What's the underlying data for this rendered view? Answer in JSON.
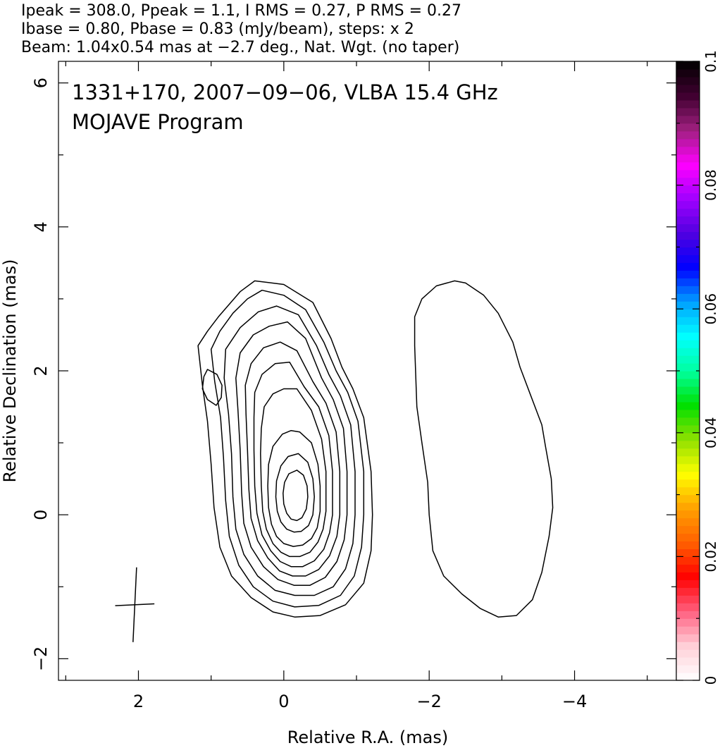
{
  "header": {
    "line1": "Ipeak = 308.0, Ppeak = 1.1, I RMS = 0.27, P RMS = 0.27",
    "line2": "Ibase = 0.80, Pbase = 0.83 (mJy/beam), steps: x 2",
    "line3": "Beam: 1.04x0.54 mas at −2.7 deg., Nat. Wgt. (no taper)"
  },
  "chart_data": {
    "type": "contour",
    "title": "1331+170, 2007−09−06, VLBA 15.4 GHz",
    "subtitle": "MOJAVE Program",
    "xlabel": "Relative R.A. (mas)",
    "ylabel": "Relative Declination (mas)",
    "xlim": [
      3.1,
      -5.4
    ],
    "ylim": [
      -2.3,
      6.3
    ],
    "x_reversed": true,
    "x_ticks": [
      2,
      0,
      -2,
      -4
    ],
    "x_tick_labels": [
      "2",
      "0",
      "−2",
      "−4"
    ],
    "x_minor_ticks": [
      3,
      1,
      -1,
      -3,
      -5
    ],
    "y_ticks": [
      -2,
      0,
      2,
      4,
      6
    ],
    "y_tick_labels": [
      "−2",
      "0",
      "2",
      "4",
      "6"
    ],
    "y_minor_ticks": [
      -1,
      1,
      3,
      5
    ],
    "grid": false,
    "colorbar": {
      "min": 0,
      "max": 0.1,
      "ticks": [
        0,
        0.02,
        0.04,
        0.06,
        0.08,
        0.1
      ],
      "tick_labels": [
        "0",
        "0.02",
        "0.04",
        "0.06",
        "0.08",
        "0.1"
      ],
      "minor_ticks": [
        0.01,
        0.03,
        0.05,
        0.07,
        0.09
      ],
      "colors": [
        "#ffffff",
        "#ffd0d8",
        "#ff6080",
        "#ff0000",
        "#ff6000",
        "#ffa000",
        "#ffff00",
        "#90e000",
        "#00e000",
        "#00ffa0",
        "#00ffff",
        "#00a0ff",
        "#0000ff",
        "#5000e0",
        "#a000ff",
        "#ff00ff",
        "#a02080",
        "#400030",
        "#000000"
      ]
    },
    "beam": {
      "center": [
        2.05,
        -1.25
      ],
      "major": 1.04,
      "minor": 0.54,
      "pa": -2.7
    },
    "contours": [
      {
        "name": "c1",
        "points": [
          [
            0.6,
            3.1
          ],
          [
            0.4,
            3.25
          ],
          [
            0.0,
            3.2
          ],
          [
            -0.4,
            2.95
          ],
          [
            -0.65,
            2.45
          ],
          [
            -0.8,
            2.05
          ],
          [
            -0.95,
            1.75
          ],
          [
            -1.1,
            1.35
          ],
          [
            -1.2,
            0.6
          ],
          [
            -1.22,
            0
          ],
          [
            -1.2,
            -0.5
          ],
          [
            -1.1,
            -0.95
          ],
          [
            -0.85,
            -1.25
          ],
          [
            -0.5,
            -1.4
          ],
          [
            -0.15,
            -1.42
          ],
          [
            0.15,
            -1.35
          ],
          [
            0.45,
            -1.15
          ],
          [
            0.72,
            -0.85
          ],
          [
            0.88,
            -0.45
          ],
          [
            0.96,
            0.1
          ],
          [
            1.0,
            0.7
          ],
          [
            1.05,
            1.3
          ],
          [
            1.12,
            1.8
          ],
          [
            1.18,
            2.35
          ],
          [
            1.05,
            2.55
          ],
          [
            0.9,
            2.75
          ],
          [
            0.6,
            3.1
          ]
        ]
      },
      {
        "name": "c2",
        "points": [
          [
            0.5,
            3.0
          ],
          [
            0.3,
            3.12
          ],
          [
            0.0,
            3.05
          ],
          [
            -0.3,
            2.85
          ],
          [
            -0.55,
            2.4
          ],
          [
            -0.72,
            2.0
          ],
          [
            -0.88,
            1.7
          ],
          [
            -1.02,
            1.3
          ],
          [
            -1.1,
            0.6
          ],
          [
            -1.1,
            0
          ],
          [
            -1.07,
            -0.45
          ],
          [
            -0.97,
            -0.85
          ],
          [
            -0.78,
            -1.12
          ],
          [
            -0.48,
            -1.26
          ],
          [
            -0.15,
            -1.28
          ],
          [
            0.15,
            -1.2
          ],
          [
            0.42,
            -1.0
          ],
          [
            0.62,
            -0.7
          ],
          [
            0.75,
            -0.3
          ],
          [
            0.8,
            0.2
          ],
          [
            0.83,
            0.8
          ],
          [
            0.87,
            1.35
          ],
          [
            0.95,
            1.85
          ],
          [
            1.0,
            2.3
          ],
          [
            0.88,
            2.55
          ],
          [
            0.7,
            2.8
          ],
          [
            0.5,
            3.0
          ]
        ]
      },
      {
        "name": "c3",
        "points": [
          [
            0.35,
            2.82
          ],
          [
            0.1,
            2.9
          ],
          [
            -0.2,
            2.78
          ],
          [
            -0.45,
            2.35
          ],
          [
            -0.62,
            1.95
          ],
          [
            -0.78,
            1.65
          ],
          [
            -0.92,
            1.25
          ],
          [
            -0.98,
            0.6
          ],
          [
            -0.98,
            0
          ],
          [
            -0.95,
            -0.4
          ],
          [
            -0.85,
            -0.75
          ],
          [
            -0.68,
            -1.0
          ],
          [
            -0.42,
            -1.12
          ],
          [
            -0.15,
            -1.12
          ],
          [
            0.12,
            -1.05
          ],
          [
            0.36,
            -0.85
          ],
          [
            0.55,
            -0.55
          ],
          [
            0.66,
            -0.2
          ],
          [
            0.7,
            0.25
          ],
          [
            0.72,
            0.85
          ],
          [
            0.76,
            1.4
          ],
          [
            0.82,
            1.9
          ],
          [
            0.8,
            2.3
          ],
          [
            0.6,
            2.6
          ],
          [
            0.35,
            2.82
          ]
        ]
      },
      {
        "name": "c4",
        "points": [
          [
            0.2,
            2.62
          ],
          [
            -0.05,
            2.68
          ],
          [
            -0.3,
            2.45
          ],
          [
            -0.52,
            1.9
          ],
          [
            -0.68,
            1.6
          ],
          [
            -0.82,
            1.2
          ],
          [
            -0.87,
            0.6
          ],
          [
            -0.87,
            0
          ],
          [
            -0.83,
            -0.35
          ],
          [
            -0.73,
            -0.65
          ],
          [
            -0.57,
            -0.87
          ],
          [
            -0.36,
            -0.98
          ],
          [
            -0.14,
            -0.98
          ],
          [
            0.08,
            -0.9
          ],
          [
            0.28,
            -0.72
          ],
          [
            0.45,
            -0.45
          ],
          [
            0.55,
            -0.12
          ],
          [
            0.58,
            0.3
          ],
          [
            0.6,
            0.9
          ],
          [
            0.63,
            1.45
          ],
          [
            0.66,
            1.9
          ],
          [
            0.6,
            2.25
          ],
          [
            0.42,
            2.5
          ],
          [
            0.2,
            2.62
          ]
        ]
      },
      {
        "name": "c5",
        "points": [
          [
            0.05,
            2.4
          ],
          [
            -0.18,
            2.28
          ],
          [
            -0.4,
            1.85
          ],
          [
            -0.58,
            1.55
          ],
          [
            -0.72,
            1.15
          ],
          [
            -0.77,
            0.6
          ],
          [
            -0.77,
            0
          ],
          [
            -0.73,
            -0.3
          ],
          [
            -0.63,
            -0.57
          ],
          [
            -0.48,
            -0.76
          ],
          [
            -0.3,
            -0.85
          ],
          [
            -0.12,
            -0.85
          ],
          [
            0.06,
            -0.78
          ],
          [
            0.22,
            -0.6
          ],
          [
            0.36,
            -0.36
          ],
          [
            0.45,
            -0.05
          ],
          [
            0.48,
            0.35
          ],
          [
            0.5,
            0.9
          ],
          [
            0.52,
            1.4
          ],
          [
            0.53,
            1.8
          ],
          [
            0.45,
            2.1
          ],
          [
            0.28,
            2.32
          ],
          [
            0.05,
            2.4
          ]
        ]
      },
      {
        "name": "c6",
        "points": [
          [
            -0.08,
            2.12
          ],
          [
            -0.28,
            1.78
          ],
          [
            -0.48,
            1.5
          ],
          [
            -0.62,
            1.1
          ],
          [
            -0.67,
            0.6
          ],
          [
            -0.67,
            0
          ],
          [
            -0.63,
            -0.25
          ],
          [
            -0.55,
            -0.48
          ],
          [
            -0.42,
            -0.64
          ],
          [
            -0.26,
            -0.72
          ],
          [
            -0.1,
            -0.72
          ],
          [
            0.05,
            -0.65
          ],
          [
            0.18,
            -0.5
          ],
          [
            0.3,
            -0.28
          ],
          [
            0.37,
            0.02
          ],
          [
            0.4,
            0.4
          ],
          [
            0.41,
            0.9
          ],
          [
            0.41,
            1.35
          ],
          [
            0.4,
            1.7
          ],
          [
            0.3,
            1.95
          ],
          [
            0.12,
            2.1
          ],
          [
            -0.08,
            2.12
          ]
        ]
      },
      {
        "name": "c7",
        "points": [
          [
            -0.18,
            1.75
          ],
          [
            -0.38,
            1.45
          ],
          [
            -0.52,
            1.05
          ],
          [
            -0.58,
            0.6
          ],
          [
            -0.58,
            0.05
          ],
          [
            -0.54,
            -0.2
          ],
          [
            -0.47,
            -0.38
          ],
          [
            -0.36,
            -0.52
          ],
          [
            -0.22,
            -0.58
          ],
          [
            -0.08,
            -0.58
          ],
          [
            0.04,
            -0.52
          ],
          [
            0.15,
            -0.4
          ],
          [
            0.24,
            -0.2
          ],
          [
            0.29,
            0.05
          ],
          [
            0.31,
            0.4
          ],
          [
            0.32,
            0.85
          ],
          [
            0.31,
            1.2
          ],
          [
            0.27,
            1.5
          ],
          [
            0.15,
            1.68
          ],
          [
            0.0,
            1.75
          ],
          [
            -0.18,
            1.75
          ]
        ]
      },
      {
        "name": "c8",
        "points": [
          [
            -0.22,
            1.15
          ],
          [
            -0.38,
            1.0
          ],
          [
            -0.47,
            0.7
          ],
          [
            -0.5,
            0.4
          ],
          [
            -0.5,
            0.05
          ],
          [
            -0.46,
            -0.18
          ],
          [
            -0.38,
            -0.33
          ],
          [
            -0.26,
            -0.42
          ],
          [
            -0.13,
            -0.44
          ],
          [
            0.0,
            -0.4
          ],
          [
            0.1,
            -0.3
          ],
          [
            0.17,
            -0.13
          ],
          [
            0.21,
            0.1
          ],
          [
            0.22,
            0.4
          ],
          [
            0.21,
            0.7
          ],
          [
            0.15,
            0.95
          ],
          [
            0.02,
            1.12
          ],
          [
            -0.1,
            1.17
          ],
          [
            -0.22,
            1.15
          ]
        ]
      },
      {
        "name": "c9",
        "points": [
          [
            -0.2,
            0.85
          ],
          [
            -0.33,
            0.73
          ],
          [
            -0.4,
            0.5
          ],
          [
            -0.42,
            0.25
          ],
          [
            -0.4,
            0.0
          ],
          [
            -0.34,
            -0.15
          ],
          [
            -0.24,
            -0.23
          ],
          [
            -0.14,
            -0.24
          ],
          [
            -0.04,
            -0.2
          ],
          [
            0.04,
            -0.1
          ],
          [
            0.09,
            0.05
          ],
          [
            0.11,
            0.25
          ],
          [
            0.1,
            0.47
          ],
          [
            0.04,
            0.68
          ],
          [
            -0.06,
            0.81
          ],
          [
            -0.2,
            0.85
          ]
        ]
      },
      {
        "name": "c10",
        "points": [
          [
            -0.18,
            0.62
          ],
          [
            -0.27,
            0.55
          ],
          [
            -0.32,
            0.4
          ],
          [
            -0.33,
            0.25
          ],
          [
            -0.31,
            0.08
          ],
          [
            -0.25,
            -0.04
          ],
          [
            -0.18,
            -0.08
          ],
          [
            -0.1,
            -0.06
          ],
          [
            -0.04,
            0.02
          ],
          [
            0.0,
            0.15
          ],
          [
            0.01,
            0.3
          ],
          [
            -0.01,
            0.45
          ],
          [
            -0.07,
            0.57
          ],
          [
            -0.18,
            0.62
          ]
        ]
      },
      {
        "name": "knot",
        "points": [
          [
            1.05,
            2.02
          ],
          [
            0.92,
            1.95
          ],
          [
            0.85,
            1.8
          ],
          [
            0.86,
            1.63
          ],
          [
            0.93,
            1.52
          ],
          [
            1.05,
            1.6
          ],
          [
            1.12,
            1.75
          ],
          [
            1.1,
            1.92
          ],
          [
            1.05,
            2.02
          ]
        ]
      },
      {
        "name": "right-blob",
        "points": [
          [
            -2.35,
            3.25
          ],
          [
            -2.1,
            3.18
          ],
          [
            -1.9,
            3.0
          ],
          [
            -1.8,
            2.75
          ],
          [
            -1.8,
            2.35
          ],
          [
            -1.83,
            1.5
          ],
          [
            -1.9,
            1.0
          ],
          [
            -1.98,
            0.45
          ],
          [
            -2.0,
            0
          ],
          [
            -2.05,
            -0.5
          ],
          [
            -2.2,
            -0.85
          ],
          [
            -2.45,
            -1.1
          ],
          [
            -2.7,
            -1.3
          ],
          [
            -2.95,
            -1.42
          ],
          [
            -3.2,
            -1.4
          ],
          [
            -3.42,
            -1.18
          ],
          [
            -3.55,
            -0.8
          ],
          [
            -3.65,
            -0.3
          ],
          [
            -3.7,
            0.1
          ],
          [
            -3.68,
            0.5
          ],
          [
            -3.6,
            0.95
          ],
          [
            -3.55,
            1.25
          ],
          [
            -3.4,
            1.65
          ],
          [
            -3.25,
            2.05
          ],
          [
            -3.15,
            2.4
          ],
          [
            -2.95,
            2.8
          ],
          [
            -2.75,
            3.05
          ],
          [
            -2.5,
            3.22
          ],
          [
            -2.35,
            3.25
          ]
        ]
      }
    ]
  }
}
